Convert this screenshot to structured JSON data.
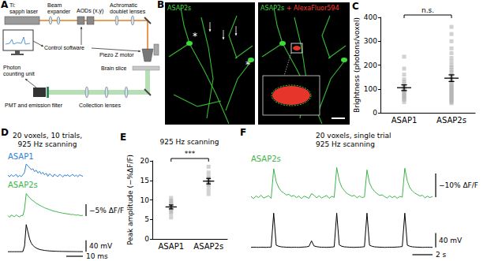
{
  "diagram": {
    "panel": "A",
    "labels": {
      "laser": [
        "Ti:",
        "sapph laser"
      ],
      "expander": [
        "Beam",
        "expander"
      ],
      "aods": [
        "AODs (x,y)"
      ],
      "lenses": [
        "Achromatic",
        "doublet lenses"
      ],
      "software": [
        "Control software"
      ],
      "piezo": [
        "Piezo Z motor"
      ],
      "slice": [
        "Brain slice"
      ],
      "counter": [
        "Photon",
        "counting unit"
      ],
      "pmt": [
        "PMT and emission filter"
      ],
      "collection": [
        "Collection lenses"
      ]
    }
  },
  "image": {
    "panel": "B",
    "left_label": "ASAP2s",
    "right_label": [
      "ASAP2s",
      "+ AlexaFluor594"
    ],
    "markers": [
      "*",
      "*"
    ],
    "colors": [
      "#3ddc3d",
      "#ff3b30"
    ]
  },
  "chart_data": [
    {
      "panel": "C",
      "type": "scatter",
      "categories": [
        "ASAP1",
        "ASAP2s"
      ],
      "y_label": "Brightness (photons/voxel)",
      "ylim": [
        0,
        400
      ],
      "yticks": [
        0,
        100,
        200,
        300,
        400
      ],
      "grid": false,
      "points": [
        [
          45,
          55,
          60,
          65,
          70,
          75,
          80,
          85,
          90,
          95,
          100,
          105,
          110,
          120,
          130,
          140,
          160,
          185,
          235
        ],
        [
          40,
          45,
          50,
          55,
          60,
          65,
          70,
          75,
          80,
          85,
          90,
          95,
          100,
          105,
          110,
          115,
          120,
          130,
          140,
          150,
          160,
          170,
          180,
          190,
          200,
          215,
          230,
          250,
          270,
          300,
          330,
          360
        ]
      ],
      "means": [
        105,
        145
      ],
      "errors": [
        12,
        14
      ],
      "annotation": "n.s.",
      "color": "#b3b3b3",
      "marker": "square"
    },
    {
      "panel": "D",
      "type": "line",
      "title": [
        "20 voxels, 10 trials,",
        "925 Hz scanning"
      ],
      "tick_labels": false,
      "x": [
        0,
        1,
        2,
        3,
        4,
        5,
        6,
        7,
        8,
        9,
        10,
        11,
        12,
        13,
        14,
        15,
        16,
        17,
        18,
        19,
        20,
        21,
        22,
        23,
        24,
        25,
        26,
        27,
        28,
        29,
        30,
        31,
        32,
        33,
        34,
        35,
        36,
        37,
        38,
        39,
        40,
        41,
        42,
        43,
        44,
        45
      ],
      "xlim": [
        0,
        45
      ],
      "x_scale_bar": {
        "value": 10,
        "label": "10 ms"
      },
      "series": [
        {
          "name": "ASAP1",
          "color": "#2f7fd6",
          "ylim": [
            -2,
            6
          ],
          "values": [
            0.3,
            -0.4,
            0.5,
            -0.2,
            0.1,
            0.6,
            -0.5,
            0.2,
            -0.3,
            0.4,
            1.5,
            5.0,
            4.2,
            3.5,
            2.6,
            3.0,
            1.8,
            2.4,
            1.2,
            1.9,
            0.8,
            1.5,
            0.4,
            1.1,
            -0.2,
            0.9,
            0.3,
            -0.4,
            0.7,
            0.1,
            -0.3,
            0.6,
            0.2,
            -0.5,
            0.4,
            0.0,
            0.5,
            -0.3,
            0.2,
            0.6,
            -0.2,
            0.3,
            -0.4,
            0.5,
            0.1,
            -0.2
          ]
        },
        {
          "name": "ASAP2s",
          "color": "#3cb54a",
          "ylim": [
            -2,
            11
          ],
          "scale_bar": {
            "value": 5,
            "label": "−5% ΔF/F"
          },
          "values": [
            0.2,
            -0.5,
            0.4,
            0.1,
            -0.3,
            0.5,
            0.0,
            -0.4,
            0.3,
            0.2,
            3.0,
            9.5,
            8.6,
            7.8,
            7.0,
            6.5,
            6.0,
            5.4,
            5.0,
            4.6,
            4.2,
            3.9,
            3.5,
            3.2,
            3.0,
            2.7,
            2.5,
            2.2,
            2.0,
            1.9,
            1.7,
            1.5,
            1.4,
            1.2,
            1.1,
            1.0,
            0.9,
            0.8,
            0.6,
            0.7,
            0.5,
            0.4,
            0.5,
            0.3,
            0.2,
            0.3
          ]
        },
        {
          "color": "#000000",
          "ylim": [
            -5,
            100
          ],
          "scale_bar": {
            "value": 40,
            "label": "40 mV"
          },
          "values": [
            0,
            0,
            0,
            0,
            0,
            0,
            0,
            0,
            0,
            0.5,
            20,
            95,
            70,
            45,
            30,
            22,
            17,
            13,
            10,
            8,
            6.5,
            5.5,
            4.5,
            3.8,
            3.2,
            2.7,
            2.3,
            2.0,
            1.7,
            1.5,
            1.3,
            1.1,
            1.0,
            0.9,
            0.8,
            0.7,
            0.6,
            0.5,
            0.5,
            0.4,
            0.4,
            0.3,
            0.3,
            0.3,
            0.2,
            0.2
          ]
        }
      ]
    },
    {
      "panel": "E",
      "type": "scatter",
      "title": "925 Hz scanning",
      "categories": [
        "ASAP1",
        "ASAP2s"
      ],
      "y_label": "Peak amplitude (−%ΔF/F)",
      "ylim": [
        0,
        20
      ],
      "yticks": [
        0,
        5,
        10,
        15,
        20
      ],
      "grid": false,
      "points": [
        [
          5.5,
          6.5,
          7.0,
          7.5,
          8.0,
          8.5,
          9.0,
          9.5,
          9.8,
          10.5
        ],
        [
          11.5,
          12.5,
          13.5,
          14.0,
          14.5,
          15.0,
          15.5,
          16.0,
          17.0,
          18.5
        ]
      ],
      "means": [
        8.2,
        14.8
      ],
      "errors": [
        0.5,
        0.7
      ],
      "annotation": "***",
      "color": "#b3b3b3",
      "marker": "square"
    },
    {
      "panel": "F",
      "type": "line",
      "title": [
        "20 voxels, single trial",
        "925 Hz scanning"
      ],
      "tick_labels": false,
      "x": [
        0,
        0.25,
        0.5,
        0.75,
        1,
        1.25,
        1.5,
        1.75,
        2,
        2.25,
        2.5,
        2.75,
        3,
        3.25,
        3.5,
        3.75,
        4,
        4.25,
        4.5,
        4.75,
        5,
        5.25,
        5.5,
        5.75,
        6,
        6.25,
        6.5,
        6.75,
        7,
        7.25,
        7.5,
        7.75,
        8,
        8.25,
        8.5,
        8.75,
        9,
        9.25,
        9.5,
        9.75,
        10,
        10.25,
        10.5,
        10.75,
        11,
        11.25,
        11.5,
        11.75,
        12,
        12.25,
        12.5,
        12.75,
        13,
        13.25,
        13.5,
        13.75,
        14,
        14.25,
        14.5,
        14.75,
        15,
        15.25,
        15.5,
        15.75,
        16,
        16.25,
        16.5,
        16.75,
        17,
        17.25,
        17.5,
        17.75,
        18
      ],
      "xlim": [
        0,
        18
      ],
      "x_scale_bar": {
        "value": 2,
        "label": "2 s"
      },
      "series": [
        {
          "name": "ASAP2s",
          "color": "#3cb54a",
          "ylim": [
            -2,
            14
          ],
          "scale_bar": {
            "value": 10,
            "label": "−10% ΔF/F"
          },
          "values": [
            0.3,
            -0.6,
            0.5,
            -0.2,
            0.8,
            -0.4,
            0.1,
            0.6,
            -0.5,
            12.0,
            6.5,
            4.0,
            2.5,
            1.8,
            0.9,
            1.2,
            0.3,
            0.7,
            -0.2,
            0.5,
            -0.6,
            0.4,
            0.0,
            -0.5,
            1.5,
            0.8,
            -0.3,
            0.6,
            -0.4,
            0.2,
            0.7,
            -0.5,
            0.3,
            -0.1,
            12.5,
            7.0,
            4.2,
            2.8,
            1.6,
            1.0,
            0.4,
            0.8,
            -0.3,
            0.5,
            -0.2,
            0.1,
            11.5,
            6.0,
            3.8,
            2.4,
            1.5,
            0.7,
            1.0,
            0.2,
            -0.4,
            0.6,
            -0.2,
            0.4,
            -0.5,
            0.3,
            0.0,
            12.2,
            6.8,
            4.0,
            2.6,
            1.7,
            1.1,
            0.5,
            0.8,
            -0.3,
            0.4,
            -0.2,
            0.3
          ]
        },
        {
          "color": "#000000",
          "ylim": [
            -5,
            100
          ],
          "scale_bar": {
            "value": 40,
            "label": "40 mV"
          },
          "values": [
            0,
            0.5,
            0.3,
            0,
            0.4,
            0.2,
            0,
            0.5,
            0.8,
            95,
            6,
            3,
            1.5,
            1,
            0.5,
            0.3,
            0,
            0.4,
            0.2,
            0,
            0.5,
            1,
            1.5,
            3,
            18,
            4,
            2,
            1,
            0.5,
            0.3,
            0,
            0.4,
            0.8,
            1.5,
            95,
            7,
            3,
            1.5,
            1,
            0.5,
            0.2,
            0,
            0.3,
            0.6,
            1,
            2,
            95,
            6,
            3,
            1.5,
            1,
            0.6,
            0.3,
            0,
            0.2,
            0.5,
            0.3,
            0.6,
            1,
            1.5,
            2.5,
            95,
            6,
            3,
            1.5,
            1,
            0.6,
            0.3,
            0,
            0.2,
            0.4,
            0.2,
            0
          ]
        }
      ]
    }
  ]
}
